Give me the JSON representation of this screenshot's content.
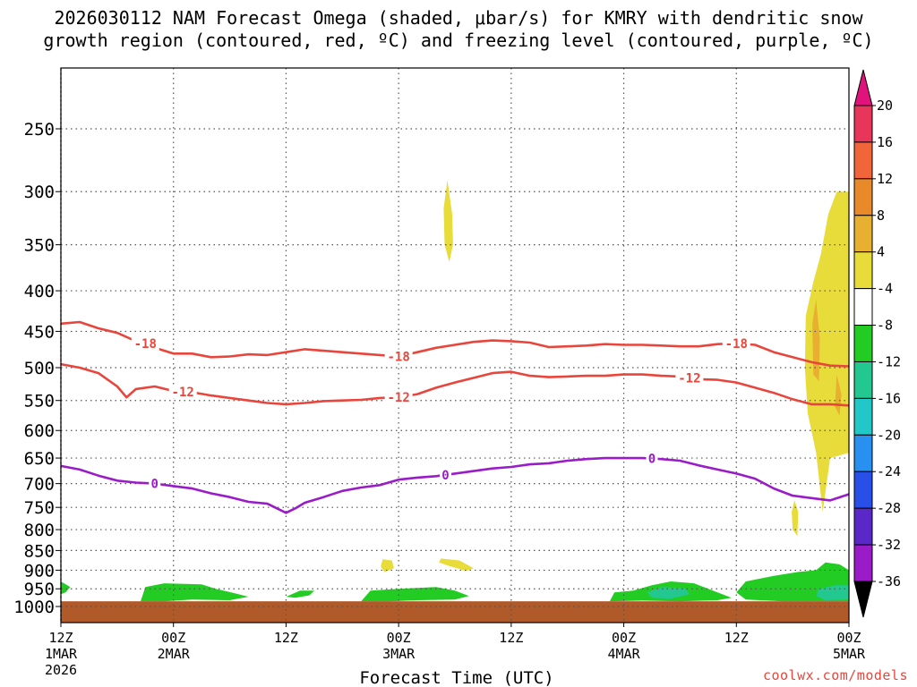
{
  "title_line1": "2026030112 NAM Forecast Omega (shaded, μbar/s) for KMRY with dendritic snow",
  "title_line2": "growth region (contoured, red, ºC) and freezing level (contoured, purple, ºC)",
  "credit": "coolwx.com/models",
  "chart_data": {
    "type": "contour",
    "title": "2026030112 NAM Forecast Omega (shaded, μbar/s) for KMRY with dendritic snow growth region (contoured, red, ºC) and freezing level (contoured, purple, ºC)",
    "xlabel": "Forecast Time (UTC)",
    "ylabel": "",
    "xlim_hours": [
      0,
      84
    ],
    "x_ticks": [
      {
        "h": 0,
        "label": "12Z",
        "sub": "1MAR",
        "sub2": "2026"
      },
      {
        "h": 12,
        "label": "00Z",
        "sub": "2MAR",
        "sub2": ""
      },
      {
        "h": 24,
        "label": "12Z",
        "sub": "",
        "sub2": ""
      },
      {
        "h": 36,
        "label": "00Z",
        "sub": "3MAR",
        "sub2": ""
      },
      {
        "h": 48,
        "label": "12Z",
        "sub": "",
        "sub2": ""
      },
      {
        "h": 60,
        "label": "00Z",
        "sub": "4MAR",
        "sub2": ""
      },
      {
        "h": 72,
        "label": "12Z",
        "sub": "",
        "sub2": ""
      },
      {
        "h": 84,
        "label": "00Z",
        "sub": "5MAR",
        "sub2": ""
      }
    ],
    "y_ticks_hpa": [
      250,
      300,
      350,
      400,
      450,
      500,
      550,
      600,
      650,
      700,
      750,
      800,
      850,
      900,
      950,
      1000
    ],
    "ylim_hpa": [
      200,
      1050
    ],
    "colorbar": {
      "labels": [
        "20",
        "16",
        "12",
        "8",
        "4",
        "-4",
        "-8",
        "-12",
        "-16",
        "-20",
        "-24",
        "-28",
        "-32",
        "-36"
      ],
      "colors": [
        "#e8365a",
        "#f0663a",
        "#e88a2a",
        "#e8b030",
        "#e8dc3a",
        "#ffffff",
        "#22cc22",
        "#22c890",
        "#22c8c8",
        "#2890f0",
        "#2850e8",
        "#5a28c8",
        "#9a1cc8",
        "#a0a0a0"
      ],
      "top_arrow_color": "#e0127c",
      "bottom_arrow_color": "#000000"
    },
    "ground_color": "#b05a2a",
    "ground_top_hpa": 985,
    "contours": [
      {
        "name": "dgz-upper-minus18",
        "value": "-18",
        "color": "#e8463c",
        "hours": [
          0,
          2,
          4,
          6,
          8,
          9,
          10,
          12,
          14,
          16,
          18,
          20,
          22,
          24,
          26,
          28,
          30,
          32,
          34,
          36,
          38,
          40,
          42,
          44,
          46,
          48,
          50,
          52,
          54,
          56,
          58,
          60,
          62,
          64,
          66,
          68,
          70,
          72,
          74,
          76,
          78,
          80,
          82,
          84
        ],
        "hpa": [
          440,
          438,
          446,
          452,
          463,
          466,
          472,
          480,
          480,
          485,
          484,
          481,
          482,
          478,
          474,
          476,
          478,
          480,
          482,
          484,
          478,
          472,
          468,
          464,
          462,
          463,
          465,
          471,
          470,
          469,
          467,
          468,
          468,
          469,
          470,
          470,
          467,
          466,
          468,
          478,
          485,
          492,
          497,
          498
        ],
        "labels_at_h": [
          9,
          36,
          72
        ]
      },
      {
        "name": "dgz-lower-minus12",
        "value": "-12",
        "color": "#e8463c",
        "hours": [
          0,
          2,
          4,
          6,
          7,
          8,
          10,
          12,
          14,
          16,
          18,
          20,
          22,
          24,
          26,
          28,
          30,
          32,
          34,
          36,
          38,
          40,
          42,
          44,
          46,
          48,
          50,
          52,
          54,
          56,
          58,
          60,
          62,
          64,
          66,
          68,
          70,
          72,
          74,
          76,
          78,
          80,
          82,
          84
        ],
        "hpa": [
          495,
          500,
          508,
          528,
          545,
          532,
          528,
          535,
          537,
          542,
          546,
          550,
          554,
          556,
          554,
          551,
          550,
          549,
          546,
          545,
          540,
          530,
          522,
          515,
          508,
          506,
          512,
          514,
          513,
          512,
          512,
          510,
          510,
          512,
          513,
          517,
          518,
          522,
          530,
          538,
          548,
          556,
          556,
          558
        ],
        "labels_at_h": [
          13,
          36,
          67
        ]
      },
      {
        "name": "freezing-level-0",
        "value": "0",
        "color": "#9a1cc8",
        "hours": [
          0,
          2,
          4,
          6,
          8,
          10,
          12,
          14,
          16,
          18,
          20,
          22,
          23,
          24,
          25,
          26,
          28,
          30,
          32,
          34,
          36,
          38,
          40,
          42,
          44,
          46,
          48,
          50,
          52,
          54,
          56,
          58,
          60,
          62,
          64,
          66,
          68,
          70,
          72,
          74,
          76,
          78,
          80,
          82,
          84
        ],
        "hpa": [
          665,
          672,
          684,
          694,
          698,
          700,
          705,
          710,
          720,
          728,
          738,
          742,
          752,
          762,
          752,
          740,
          728,
          715,
          708,
          703,
          692,
          688,
          685,
          680,
          675,
          670,
          667,
          662,
          660,
          655,
          652,
          650,
          650,
          650,
          652,
          655,
          664,
          672,
          680,
          690,
          710,
          725,
          730,
          735,
          722
        ],
        "labels_at_h": [
          10,
          41,
          63
        ]
      }
    ],
    "omega_regions": [
      {
        "name": "yellow-cell-upper",
        "value_range": "4 to 8",
        "color": "#e8dc3a",
        "poly_h_hpa": [
          [
            41.2,
            290
          ],
          [
            41.7,
            320
          ],
          [
            41.8,
            350
          ],
          [
            41.4,
            368
          ],
          [
            40.9,
            350
          ],
          [
            40.8,
            315
          ]
        ]
      },
      {
        "name": "yellow-band-right",
        "value_range": "4 to 8",
        "color": "#e8dc3a",
        "poly_h_hpa": [
          [
            84,
            300
          ],
          [
            84,
            640
          ],
          [
            82,
            650
          ],
          [
            81.2,
            760
          ],
          [
            80.5,
            640
          ],
          [
            79.6,
            570
          ],
          [
            79.3,
            500
          ],
          [
            79.4,
            430
          ],
          [
            80.2,
            390
          ],
          [
            81.0,
            360
          ],
          [
            81.8,
            320
          ],
          [
            82.7,
            300
          ]
        ]
      },
      {
        "name": "yellow-small-right",
        "value_range": "4 to 8",
        "color": "#e8dc3a",
        "poly_h_hpa": [
          [
            78.2,
            735
          ],
          [
            78.6,
            760
          ],
          [
            78.5,
            815
          ],
          [
            78.0,
            800
          ],
          [
            77.9,
            760
          ]
        ]
      },
      {
        "name": "orange-streak",
        "value_range": "8 to 12",
        "color": "#e8b030",
        "poly_h_hpa": [
          [
            80.5,
            410
          ],
          [
            80.9,
            460
          ],
          [
            80.8,
            520
          ],
          [
            80.2,
            510
          ],
          [
            80.1,
            440
          ]
        ]
      },
      {
        "name": "orange-streak-2",
        "value_range": "8 to 12",
        "color": "#e8b030",
        "poly_h_hpa": [
          [
            82.7,
            510
          ],
          [
            83.2,
            540
          ],
          [
            83.0,
            575
          ],
          [
            82.5,
            560
          ]
        ]
      },
      {
        "name": "yellow-blob-900a",
        "value_range": "4 to 8",
        "color": "#e8dc3a",
        "poly_h_hpa": [
          [
            34.3,
            872
          ],
          [
            35.3,
            875
          ],
          [
            35.5,
            895
          ],
          [
            34.5,
            905
          ],
          [
            34.1,
            890
          ]
        ]
      },
      {
        "name": "yellow-blob-900b",
        "value_range": "4 to 8",
        "color": "#e8dc3a",
        "poly_h_hpa": [
          [
            40.5,
            870
          ],
          [
            42.5,
            875
          ],
          [
            44.0,
            895
          ],
          [
            43.2,
            902
          ],
          [
            41.5,
            890
          ],
          [
            40.3,
            880
          ]
        ]
      },
      {
        "name": "green-low-left",
        "value_range": "-4 to -8",
        "color": "#22cc22",
        "poly_h_hpa": [
          [
            0,
            930
          ],
          [
            1.0,
            945
          ],
          [
            0.5,
            960
          ],
          [
            0,
            965
          ]
        ]
      },
      {
        "name": "green-low-1",
        "value_range": "-4 to -8",
        "color": "#22cc22",
        "poly_h_hpa": [
          [
            8.5,
            985
          ],
          [
            9.0,
            945
          ],
          [
            11.0,
            935
          ],
          [
            15.0,
            938
          ],
          [
            16.5,
            950
          ],
          [
            18.5,
            962
          ],
          [
            20.0,
            972
          ],
          [
            18.0,
            982
          ],
          [
            14.0,
            980
          ],
          [
            11.0,
            985
          ]
        ]
      },
      {
        "name": "green-low-2",
        "value_range": "-4 to -8",
        "color": "#22cc22",
        "poly_h_hpa": [
          [
            24.0,
            972
          ],
          [
            25.5,
            955
          ],
          [
            27.0,
            955
          ],
          [
            26.5,
            968
          ],
          [
            25.0,
            975
          ]
        ]
      },
      {
        "name": "green-low-3",
        "value_range": "-4 to -8",
        "color": "#22cc22",
        "poly_h_hpa": [
          [
            32.0,
            985
          ],
          [
            33.0,
            955
          ],
          [
            36.0,
            950
          ],
          [
            40.0,
            945
          ],
          [
            42.0,
            955
          ],
          [
            43.5,
            970
          ],
          [
            42.0,
            980
          ],
          [
            38.0,
            982
          ],
          [
            35.0,
            985
          ]
        ]
      },
      {
        "name": "green-low-4",
        "value_range": "-4 to -8",
        "color": "#22cc22",
        "poly_h_hpa": [
          [
            58.5,
            985
          ],
          [
            59.0,
            960
          ],
          [
            61.0,
            955
          ],
          [
            63.0,
            940
          ],
          [
            65.0,
            930
          ],
          [
            67.5,
            935
          ],
          [
            70.0,
            960
          ],
          [
            71.5,
            975
          ],
          [
            70.0,
            982
          ],
          [
            66.0,
            985
          ],
          [
            62.0,
            983
          ]
        ]
      },
      {
        "name": "teal-low-4",
        "value_range": "-8 to -12",
        "color": "#22c890",
        "poly_h_hpa": [
          [
            62.5,
            960
          ],
          [
            64.0,
            945
          ],
          [
            66.5,
            948
          ],
          [
            67.0,
            965
          ],
          [
            65.0,
            978
          ],
          [
            63.0,
            975
          ]
        ]
      },
      {
        "name": "green-low-5",
        "value_range": "-4 to -8",
        "color": "#22cc22",
        "poly_h_hpa": [
          [
            72.0,
            960
          ],
          [
            73.0,
            930
          ],
          [
            76.0,
            915
          ],
          [
            78.5,
            905
          ],
          [
            80.5,
            900
          ],
          [
            81.5,
            880
          ],
          [
            83.0,
            885
          ],
          [
            84.0,
            900
          ],
          [
            84.0,
            985
          ],
          [
            77.0,
            985
          ],
          [
            73.0,
            980
          ]
        ]
      },
      {
        "name": "teal-low-5",
        "value_range": "-8 to -12",
        "color": "#22c890",
        "poly_h_hpa": [
          [
            80.8,
            950
          ],
          [
            82.5,
            940
          ],
          [
            84.0,
            940
          ],
          [
            84.0,
            980
          ],
          [
            81.5,
            982
          ],
          [
            80.5,
            970
          ]
        ]
      }
    ]
  }
}
